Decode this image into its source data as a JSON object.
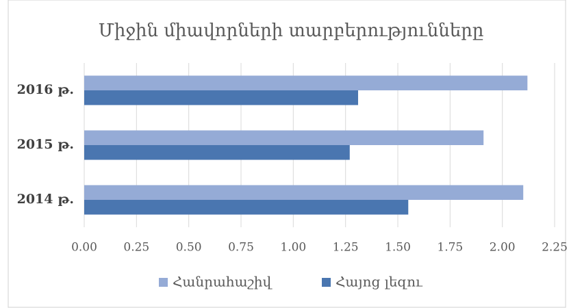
{
  "chart_data": {
    "type": "barh",
    "title": "Միջին միավորների տարբերությունները",
    "categories": [
      "2014 թ.",
      "2015 թ.",
      "2016 թ."
    ],
    "series": [
      {
        "name": "Հանրահաշիվ",
        "color": "#95abd6",
        "values": [
          2.1,
          1.91,
          2.12
        ]
      },
      {
        "name": "Հայոց լեզու",
        "color": "#4a76b0",
        "values": [
          1.55,
          1.27,
          1.31
        ]
      }
    ],
    "xlim": [
      0,
      2.25
    ],
    "xticks": [
      {
        "value": 0,
        "label": "0.00"
      },
      {
        "value": 0.25,
        "label": "0.25"
      },
      {
        "value": 0.5,
        "label": "0.50"
      },
      {
        "value": 0.75,
        "label": "0.75"
      },
      {
        "value": 1,
        "label": "1.00"
      },
      {
        "value": 1.25,
        "label": "1.25"
      },
      {
        "value": 1.5,
        "label": "1.50"
      },
      {
        "value": 1.75,
        "label": "1.75"
      },
      {
        "value": 2,
        "label": "2.00"
      },
      {
        "value": 2.25,
        "label": "2.25"
      }
    ],
    "grid": true,
    "legend": "bottom"
  }
}
